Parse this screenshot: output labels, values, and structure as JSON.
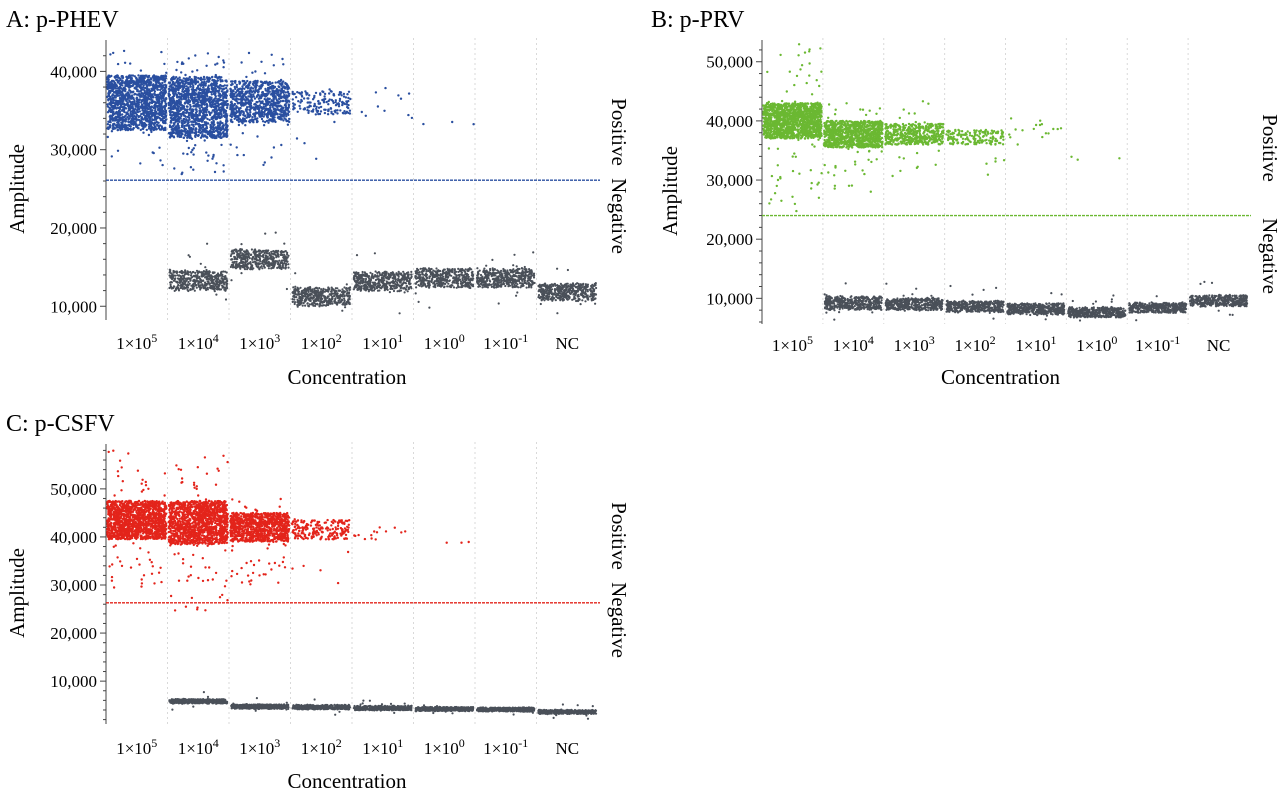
{
  "figure": {
    "panels": [
      "A: p-PHEV",
      "B: p-PRV",
      "C: p-CSFV"
    ]
  },
  "chart_data": [
    {
      "type": "scatter",
      "title": "A: p-PHEV",
      "xlabel": "Concentration",
      "ylabel": "Amplitude",
      "positive_label": "Positive",
      "negative_label": "Negative",
      "categories": [
        "1×10^5",
        "1×10^4",
        "1×10^3",
        "1×10^2",
        "1×10^1",
        "1×10^0",
        "1×10^-1",
        "NC"
      ],
      "category_labels": [
        {
          "base": "1×10",
          "exp": "5"
        },
        {
          "base": "1×10",
          "exp": "4"
        },
        {
          "base": "1×10",
          "exp": "3"
        },
        {
          "base": "1×10",
          "exp": "2"
        },
        {
          "base": "1×10",
          "exp": "1"
        },
        {
          "base": "1×10",
          "exp": "0"
        },
        {
          "base": "1×10",
          "exp": "-1"
        },
        {
          "base": "NC",
          "exp": ""
        }
      ],
      "yticks": [
        10000,
        20000,
        30000,
        40000
      ],
      "ytick_labels": [
        "10,000",
        "20,000",
        "30,000",
        "40,000"
      ],
      "ylim": [
        8500,
        43500
      ],
      "threshold": 26100,
      "positive_color": "#2a4fa0",
      "negative_color": "#4a5059",
      "positive_clusters": [
        {
          "category": 0,
          "low": 32500,
          "high": 39500,
          "density": 1.0,
          "outlier_low": 28000,
          "outlier_high": 43000
        },
        {
          "category": 1,
          "low": 31500,
          "high": 39300,
          "density": 1.0,
          "outlier_low": 26800,
          "outlier_high": 42800
        },
        {
          "category": 2,
          "low": 33500,
          "high": 38800,
          "density": 0.6,
          "outlier_low": 28000,
          "outlier_high": 42500
        },
        {
          "category": 3,
          "low": 34500,
          "high": 37500,
          "density": 0.12,
          "outlier_low": 28500,
          "outlier_high": 38500
        },
        {
          "category": 4,
          "low": 34000,
          "high": 38000,
          "density": 0.008,
          "outlier_low": 33000,
          "outlier_high": 38000
        },
        {
          "category": 5,
          "low": 33200,
          "high": 33600,
          "density": 0.002,
          "outlier_low": 33000,
          "outlier_high": 34000
        }
      ],
      "negative_clusters": [
        {
          "category": 1,
          "center": 13300,
          "spread": 1300,
          "density": 0.5
        },
        {
          "category": 2,
          "center": 16000,
          "spread": 1300,
          "density": 0.5
        },
        {
          "category": 3,
          "center": 11200,
          "spread": 1300,
          "density": 0.5
        },
        {
          "category": 4,
          "center": 13200,
          "spread": 1300,
          "density": 0.5
        },
        {
          "category": 5,
          "center": 13600,
          "spread": 1300,
          "density": 0.5
        },
        {
          "category": 6,
          "center": 13600,
          "spread": 1300,
          "density": 0.5
        },
        {
          "category": 7,
          "center": 11800,
          "spread": 1200,
          "density": 0.5
        }
      ]
    },
    {
      "type": "scatter",
      "title": "B: p-PRV",
      "xlabel": "Concentration",
      "ylabel": "Amplitude",
      "positive_label": "Positive",
      "negative_label": "Negative",
      "categories": [
        "1×10^5",
        "1×10^4",
        "1×10^3",
        "1×10^2",
        "1×10^1",
        "1×10^0",
        "1×10^-1",
        "NC"
      ],
      "category_labels": [
        {
          "base": "1×10",
          "exp": "5"
        },
        {
          "base": "1×10",
          "exp": "4"
        },
        {
          "base": "1×10",
          "exp": "3"
        },
        {
          "base": "1×10",
          "exp": "2"
        },
        {
          "base": "1×10",
          "exp": "1"
        },
        {
          "base": "1×10",
          "exp": "0"
        },
        {
          "base": "1×10",
          "exp": "-1"
        },
        {
          "base": "NC",
          "exp": ""
        }
      ],
      "yticks": [
        10000,
        20000,
        30000,
        40000,
        50000
      ],
      "ytick_labels": [
        "10,000",
        "20,000",
        "30,000",
        "40,000",
        "50,000"
      ],
      "ylim": [
        6000,
        53000
      ],
      "threshold": 24000,
      "positive_color": "#6bb832",
      "negative_color": "#4a5059",
      "positive_clusters": [
        {
          "category": 0,
          "low": 37000,
          "high": 43000,
          "density": 1.0,
          "outlier_low": 24000,
          "outlier_high": 53000
        },
        {
          "category": 1,
          "low": 35500,
          "high": 40000,
          "density": 0.7,
          "outlier_low": 28000,
          "outlier_high": 43000
        },
        {
          "category": 2,
          "low": 36000,
          "high": 39500,
          "density": 0.35,
          "outlier_low": 30000,
          "outlier_high": 44000
        },
        {
          "category": 3,
          "low": 36000,
          "high": 38500,
          "density": 0.12,
          "outlier_low": 28000,
          "outlier_high": 40000
        },
        {
          "category": 4,
          "low": 36000,
          "high": 40500,
          "density": 0.012,
          "outlier_low": 35000,
          "outlier_high": 41000
        },
        {
          "category": 5,
          "low": 33000,
          "high": 34000,
          "density": 0.002,
          "outlier_low": 33000,
          "outlier_high": 34000
        }
      ],
      "negative_clusters": [
        {
          "category": 1,
          "center": 9200,
          "spread": 1200,
          "density": 0.5
        },
        {
          "category": 2,
          "center": 9000,
          "spread": 1100,
          "density": 0.5
        },
        {
          "category": 3,
          "center": 8600,
          "spread": 1000,
          "density": 0.5
        },
        {
          "category": 4,
          "center": 8200,
          "spread": 1000,
          "density": 0.5
        },
        {
          "category": 5,
          "center": 7600,
          "spread": 900,
          "density": 0.5
        },
        {
          "category": 6,
          "center": 8400,
          "spread": 900,
          "density": 0.5
        },
        {
          "category": 7,
          "center": 9600,
          "spread": 1000,
          "density": 0.5
        }
      ]
    },
    {
      "type": "scatter",
      "title": "C: p-CSFV",
      "xlabel": "Concentration",
      "ylabel": "Amplitude",
      "positive_label": "Positive",
      "negative_label": "Negative",
      "categories": [
        "1×10^5",
        "1×10^4",
        "1×10^3",
        "1×10^2",
        "1×10^1",
        "1×10^0",
        "1×10^-1",
        "NC"
      ],
      "category_labels": [
        {
          "base": "1×10",
          "exp": "5"
        },
        {
          "base": "1×10",
          "exp": "4"
        },
        {
          "base": "1×10",
          "exp": "3"
        },
        {
          "base": "1×10",
          "exp": "2"
        },
        {
          "base": "1×10",
          "exp": "1"
        },
        {
          "base": "1×10",
          "exp": "0"
        },
        {
          "base": "1×10",
          "exp": "-1"
        },
        {
          "base": "NC",
          "exp": ""
        }
      ],
      "yticks": [
        10000,
        20000,
        30000,
        40000,
        50000
      ],
      "ytick_labels": [
        "10,000",
        "20,000",
        "30,000",
        "40,000",
        "50,000"
      ],
      "ylim": [
        1500,
        58500
      ],
      "threshold": 26300,
      "positive_color": "#e3241b",
      "negative_color": "#4a5059",
      "positive_clusters": [
        {
          "category": 0,
          "low": 39500,
          "high": 47500,
          "density": 1.0,
          "outlier_low": 29000,
          "outlier_high": 58000
        },
        {
          "category": 1,
          "low": 38500,
          "high": 47500,
          "density": 1.0,
          "outlier_low": 24500,
          "outlier_high": 57000
        },
        {
          "category": 2,
          "low": 39000,
          "high": 45000,
          "density": 0.7,
          "outlier_low": 30000,
          "outlier_high": 48000
        },
        {
          "category": 3,
          "low": 39500,
          "high": 43500,
          "density": 0.15,
          "outlier_low": 30000,
          "outlier_high": 45000
        },
        {
          "category": 4,
          "low": 39000,
          "high": 42000,
          "density": 0.01,
          "outlier_low": 39000,
          "outlier_high": 42000
        },
        {
          "category": 5,
          "low": 38500,
          "high": 39000,
          "density": 0.002,
          "outlier_low": 38500,
          "outlier_high": 39000
        }
      ],
      "negative_clusters": [
        {
          "category": 1,
          "center": 5800,
          "spread": 500,
          "density": 0.5
        },
        {
          "category": 2,
          "center": 4700,
          "spread": 500,
          "density": 0.5
        },
        {
          "category": 3,
          "center": 4600,
          "spread": 500,
          "density": 0.5
        },
        {
          "category": 4,
          "center": 4400,
          "spread": 500,
          "density": 0.5
        },
        {
          "category": 5,
          "center": 4200,
          "spread": 450,
          "density": 0.5
        },
        {
          "category": 6,
          "center": 4100,
          "spread": 450,
          "density": 0.5
        },
        {
          "category": 7,
          "center": 3600,
          "spread": 450,
          "density": 0.5
        }
      ]
    }
  ]
}
